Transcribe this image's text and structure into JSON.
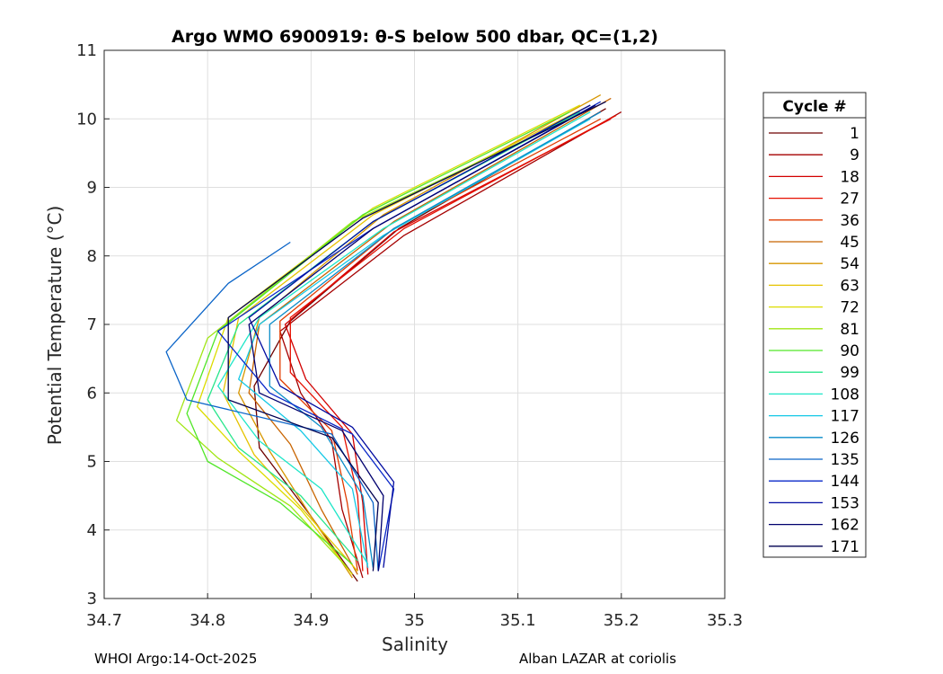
{
  "chart_data": {
    "type": "line",
    "title": "Argo WMO 6900919: θ-S below 500 dbar,  QC=(1,2)",
    "xlabel": "Salinity",
    "ylabel": "Potential Temperature (°C)",
    "xlim": [
      34.7,
      35.3
    ],
    "ylim": [
      3,
      11
    ],
    "xticks": [
      "34.7",
      "34.8",
      "34.9",
      "35",
      "35.1",
      "35.2",
      "35.3"
    ],
    "yticks": [
      "3",
      "4",
      "5",
      "6",
      "7",
      "8",
      "9",
      "10",
      "11"
    ],
    "grid": true,
    "legend": {
      "title": "Cycle #",
      "placement": "outside-right",
      "entries": [
        "1",
        "9",
        "18",
        "27",
        "36",
        "45",
        "54",
        "63",
        "72",
        "81",
        "90",
        "99",
        "108",
        "117",
        "126",
        "135",
        "144",
        "153",
        "162",
        "171"
      ],
      "colors": [
        "#6e0000",
        "#a50000",
        "#d20000",
        "#e60f00",
        "#e13c00",
        "#c86400",
        "#d79600",
        "#e6c300",
        "#dcdc00",
        "#a0e614",
        "#50e628",
        "#28e68c",
        "#1ee6c8",
        "#14c8e6",
        "#0a8cc8",
        "#0a64c8",
        "#0a28c8",
        "#000aa0",
        "#00006e",
        "#000050"
      ]
    },
    "series": [
      {
        "name": "1",
        "color": "#6e0000",
        "s": [
          34.945,
          34.9,
          34.85,
          34.845,
          34.88,
          34.985,
          35.185
        ],
        "theta": [
          3.25,
          4.2,
          5.2,
          6.1,
          7.05,
          8.4,
          10.15
        ]
      },
      {
        "name": "9",
        "color": "#a50000",
        "s": [
          34.95,
          34.93,
          34.92,
          34.89,
          34.87,
          34.99,
          35.2
        ],
        "theta": [
          3.3,
          4.3,
          5.3,
          6.0,
          6.9,
          8.3,
          10.1
        ]
      },
      {
        "name": "18",
        "color": "#d20000",
        "s": [
          34.955,
          34.95,
          34.94,
          34.895,
          34.875,
          34.98,
          35.19
        ],
        "theta": [
          3.35,
          4.4,
          5.4,
          6.2,
          7.0,
          8.35,
          10.0
        ]
      },
      {
        "name": "27",
        "color": "#e60f00",
        "s": [
          34.95,
          34.945,
          34.93,
          34.88,
          34.88,
          34.99,
          35.195
        ],
        "theta": [
          3.4,
          4.5,
          5.5,
          6.3,
          7.1,
          8.4,
          10.05
        ]
      },
      {
        "name": "36",
        "color": "#e13c00",
        "s": [
          34.945,
          34.935,
          34.92,
          34.87,
          34.87,
          34.98,
          35.18
        ],
        "theta": [
          3.4,
          4.4,
          5.45,
          6.2,
          7.05,
          8.4,
          10.0
        ]
      },
      {
        "name": "45",
        "color": "#c86400",
        "s": [
          34.945,
          34.91,
          34.88,
          34.84,
          34.85,
          34.98,
          35.19
        ],
        "theta": [
          3.35,
          4.3,
          5.25,
          6.0,
          7.0,
          8.5,
          10.3
        ]
      },
      {
        "name": "54",
        "color": "#d79600",
        "s": [
          34.94,
          34.9,
          34.86,
          34.83,
          34.85,
          34.97,
          35.18
        ],
        "theta": [
          3.3,
          4.2,
          5.15,
          6.0,
          7.1,
          8.6,
          10.35
        ]
      },
      {
        "name": "63",
        "color": "#e6c300",
        "s": [
          34.945,
          34.895,
          34.845,
          34.815,
          34.83,
          34.96,
          35.17
        ],
        "theta": [
          3.4,
          4.25,
          5.1,
          6.0,
          7.1,
          8.6,
          10.2
        ]
      },
      {
        "name": "72",
        "color": "#dcdc00",
        "s": [
          34.94,
          34.89,
          34.83,
          34.79,
          34.82,
          34.96,
          35.16
        ],
        "theta": [
          3.35,
          4.3,
          5.15,
          5.8,
          7.1,
          8.7,
          10.2
        ]
      },
      {
        "name": "81",
        "color": "#a0e614",
        "s": [
          34.935,
          34.88,
          34.81,
          34.77,
          34.8,
          34.94,
          35.15
        ],
        "theta": [
          3.45,
          4.35,
          5.05,
          5.6,
          6.8,
          8.5,
          10.0
        ]
      },
      {
        "name": "90",
        "color": "#50e628",
        "s": [
          34.94,
          34.87,
          34.8,
          34.78,
          34.81,
          34.95,
          35.15
        ],
        "theta": [
          3.5,
          4.4,
          5.0,
          5.7,
          6.9,
          8.6,
          10.1
        ]
      },
      {
        "name": "99",
        "color": "#28e68c",
        "s": [
          34.945,
          34.89,
          34.83,
          34.8,
          34.83,
          34.96,
          35.16
        ],
        "theta": [
          3.55,
          4.5,
          5.2,
          5.9,
          7.0,
          8.5,
          10.1
        ]
      },
      {
        "name": "108",
        "color": "#1ee6c8",
        "s": [
          34.955,
          34.91,
          34.85,
          34.81,
          34.85,
          34.97,
          35.17
        ],
        "theta": [
          3.5,
          4.6,
          5.3,
          6.1,
          7.1,
          8.4,
          10.1
        ]
      },
      {
        "name": "117",
        "color": "#14c8e6",
        "s": [
          34.955,
          34.94,
          34.89,
          34.83,
          34.85,
          34.97,
          35.17
        ],
        "theta": [
          3.45,
          4.6,
          5.45,
          6.2,
          7.0,
          8.3,
          10.0
        ]
      },
      {
        "name": "126",
        "color": "#0a8cc8",
        "s": [
          34.96,
          34.95,
          34.91,
          34.86,
          34.86,
          34.98,
          35.18
        ],
        "theta": [
          3.45,
          4.5,
          5.5,
          6.1,
          7.0,
          8.4,
          10.1
        ]
      },
      {
        "name": "135",
        "color": "#0a64c8",
        "s": [
          34.965,
          34.96,
          34.92,
          34.78,
          34.76,
          34.82,
          34.88
        ],
        "theta": [
          3.4,
          4.4,
          5.4,
          5.9,
          6.6,
          7.6,
          8.2
        ]
      },
      {
        "name": "144",
        "color": "#0a28c8",
        "s": [
          34.965,
          34.98,
          34.94,
          34.86,
          34.81,
          34.96,
          35.18
        ],
        "theta": [
          3.4,
          4.6,
          5.4,
          6.0,
          6.9,
          8.4,
          10.25
        ]
      },
      {
        "name": "153",
        "color": "#000aa0",
        "s": [
          34.97,
          34.98,
          34.94,
          34.87,
          34.84,
          34.96,
          35.17
        ],
        "theta": [
          3.45,
          4.7,
          5.5,
          6.1,
          7.1,
          8.5,
          10.2
        ]
      },
      {
        "name": "162",
        "color": "#00006e",
        "s": [
          34.965,
          34.97,
          34.93,
          34.85,
          34.84,
          34.96,
          35.175
        ],
        "theta": [
          3.4,
          4.5,
          5.45,
          6.0,
          7.0,
          8.4,
          10.2
        ]
      },
      {
        "name": "171",
        "color": "#000050",
        "s": [
          34.96,
          34.965,
          34.92,
          34.82,
          34.82,
          34.95,
          35.185
        ],
        "theta": [
          3.4,
          4.4,
          5.35,
          5.9,
          7.1,
          8.55,
          10.25
        ]
      }
    ]
  },
  "footer": {
    "left": "WHOI Argo:14-Oct-2025",
    "right": "Alban LAZAR at coriolis"
  }
}
